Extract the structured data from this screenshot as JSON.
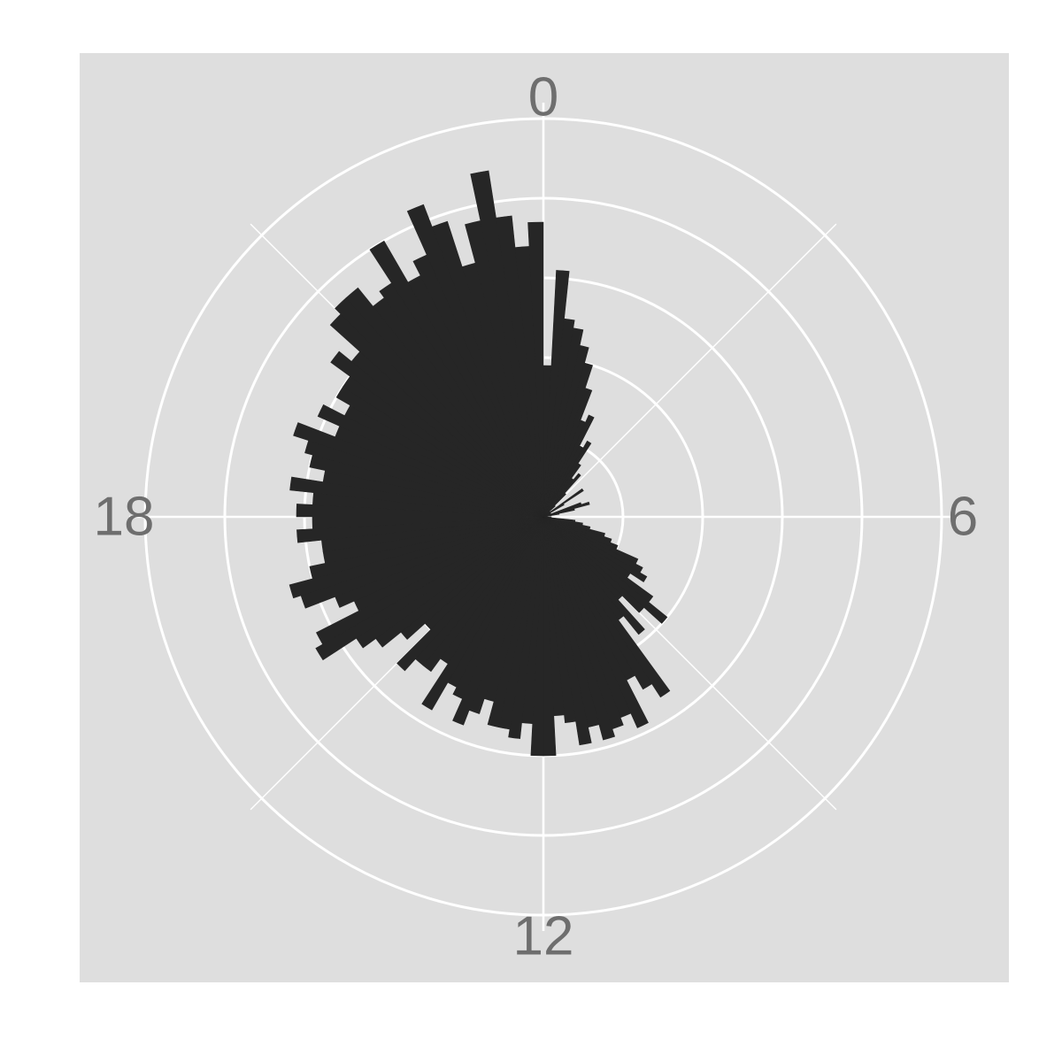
{
  "chart_data": {
    "type": "bar",
    "coord": "polar",
    "title": "",
    "xlabel": "",
    "ylabel": "",
    "theta_range": [
      0,
      24
    ],
    "angle_labels": [
      "0",
      "6",
      "12",
      "18"
    ],
    "angle_label_values": [
      0,
      6,
      12,
      18
    ],
    "radial_breaks": [
      10,
      20,
      30,
      40,
      50
    ],
    "rlim": [
      0,
      52
    ],
    "bar_width": 0.2,
    "grid": true,
    "radial_axis_labels_shown": false,
    "x": [
      0.0,
      0.2,
      0.4,
      0.6,
      0.8,
      1.0,
      1.2,
      1.4,
      1.6,
      1.8,
      2.0,
      2.2,
      2.4,
      2.6,
      2.8,
      3.0,
      3.2,
      3.4,
      3.6,
      3.8,
      4.0,
      4.2,
      4.4,
      4.6,
      4.8,
      5.0,
      5.2,
      5.4,
      5.6,
      5.8,
      6.0,
      6.2,
      6.4,
      6.6,
      6.8,
      7.0,
      7.2,
      7.4,
      7.6,
      7.8,
      8.0,
      8.2,
      8.4,
      8.6,
      8.8,
      9.0,
      9.2,
      9.4,
      9.6,
      9.8,
      10.0,
      10.2,
      10.4,
      10.6,
      10.8,
      11.0,
      11.2,
      11.4,
      11.6,
      11.8,
      12.0,
      12.2,
      12.4,
      12.6,
      12.8,
      13.0,
      13.2,
      13.4,
      13.6,
      13.8,
      14.0,
      14.2,
      14.4,
      14.6,
      14.8,
      15.0,
      15.2,
      15.4,
      15.6,
      15.8,
      16.0,
      16.2,
      16.4,
      16.6,
      16.8,
      17.0,
      17.2,
      17.4,
      17.6,
      17.8,
      18.0,
      18.2,
      18.4,
      18.6,
      18.8,
      19.0,
      19.2,
      19.4,
      19.6,
      19.8,
      20.0,
      20.2,
      20.4,
      20.6,
      20.8,
      21.0,
      21.2,
      21.4,
      21.6,
      21.8,
      22.0,
      22.2,
      22.4,
      22.6,
      22.8,
      23.0,
      23.2,
      23.4,
      23.6,
      23.8
    ],
    "values": [
      19,
      31,
      25,
      24,
      22,
      20,
      17,
      13,
      14,
      10,
      11,
      8,
      6,
      7,
      4,
      2,
      1,
      1,
      6,
      3,
      1,
      1,
      1,
      5,
      6,
      4,
      2,
      1,
      0.3,
      0.5,
      0,
      1,
      4,
      5,
      6,
      8,
      9,
      10,
      13,
      14,
      15,
      13,
      17,
      20,
      17,
      14,
      19,
      16,
      27,
      25,
      23,
      29,
      27,
      28,
      29,
      27,
      29,
      26,
      25,
      30,
      30,
      26,
      28,
      27,
      27,
      24,
      26,
      28,
      25,
      24,
      28,
      22,
      24,
      24,
      26,
      20,
      23,
      26,
      28,
      33,
      32,
      26,
      28,
      32,
      33,
      30,
      28,
      28,
      31,
      29,
      31,
      29,
      32,
      28,
      30,
      31,
      33,
      28,
      31,
      28,
      30,
      30,
      33,
      31,
      36,
      37,
      37,
      34,
      35,
      40,
      34,
      36,
      42,
      39,
      33,
      38,
      44,
      38,
      34,
      37
    ],
    "colors": {
      "panel": "#dedede",
      "grid": "#ffffff",
      "bar": "#262626",
      "label": "#6e6e6e",
      "page": "#ffffff"
    }
  }
}
